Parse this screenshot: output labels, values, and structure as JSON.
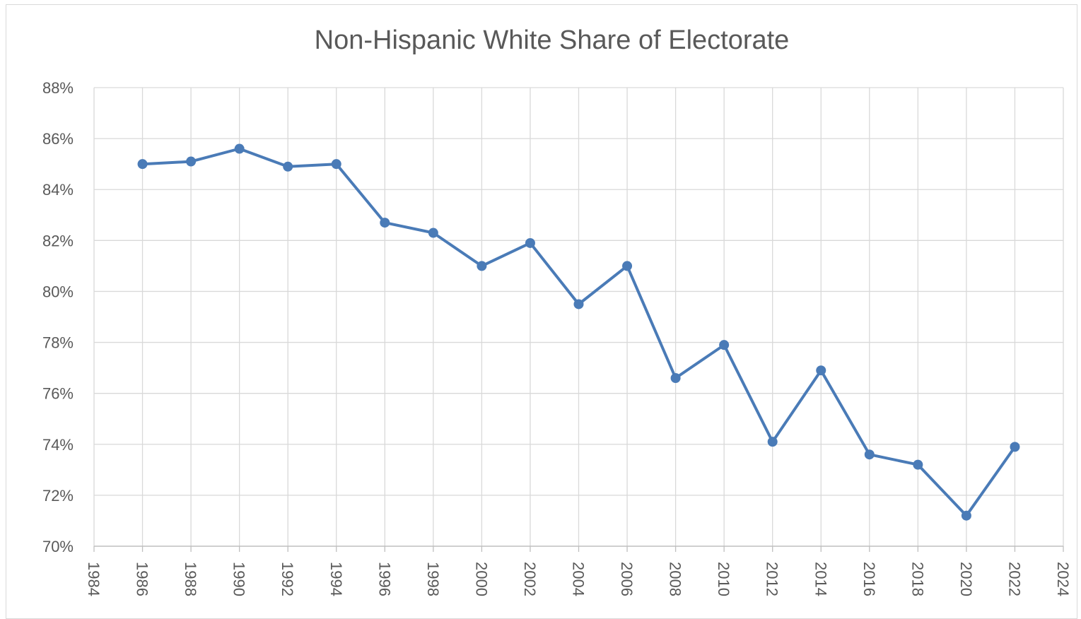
{
  "chart_data": {
    "type": "line",
    "title": "Non-Hispanic White Share of Electorate",
    "xlabel": "",
    "ylabel": "",
    "xlim": [
      1984,
      2024
    ],
    "ylim": [
      70,
      88
    ],
    "x_ticks": [
      "1984",
      "1986",
      "1988",
      "1990",
      "1992",
      "1994",
      "1996",
      "1998",
      "2000",
      "2002",
      "2004",
      "2006",
      "2008",
      "2010",
      "2012",
      "2014",
      "2016",
      "2018",
      "2020",
      "2022",
      "2024"
    ],
    "y_ticks": [
      "70%",
      "72%",
      "74%",
      "76%",
      "78%",
      "80%",
      "82%",
      "84%",
      "86%",
      "88%"
    ],
    "grid": true,
    "legend": "none",
    "series": [
      {
        "color": "#4a7bb7",
        "x": [
          1986,
          1988,
          1990,
          1992,
          1994,
          1996,
          1998,
          2000,
          2002,
          2004,
          2006,
          2008,
          2010,
          2012,
          2014,
          2016,
          2018,
          2020,
          2022
        ],
        "y": [
          85.0,
          85.1,
          85.6,
          84.9,
          85.0,
          82.7,
          82.3,
          81.0,
          81.9,
          79.5,
          81.0,
          76.6,
          77.9,
          74.1,
          76.9,
          73.6,
          73.2,
          71.2,
          73.9
        ]
      }
    ]
  }
}
